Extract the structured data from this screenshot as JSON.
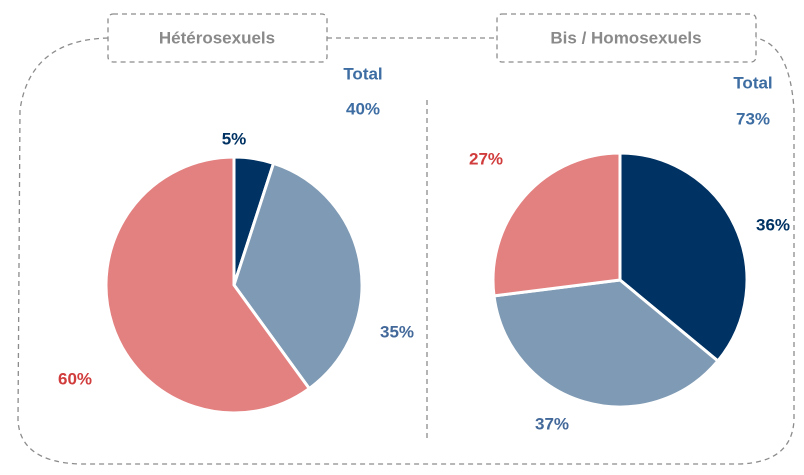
{
  "chart_data": [
    {
      "type": "pie",
      "title": "Hétérosexuels",
      "categories": [
        null,
        null,
        null
      ],
      "values": [
        5,
        35,
        60
      ],
      "value_labels": [
        "5%",
        "35%",
        "60%"
      ],
      "colors": [
        "#003263",
        "#7f9ab4",
        "#e38080"
      ],
      "label_colors": [
        "#003263",
        "#43699a",
        "#d13c3c"
      ],
      "total": {
        "label": "Total",
        "value": 40,
        "value_label": "40%",
        "color": "#3d6da2"
      }
    },
    {
      "type": "pie",
      "title": "Bis / Homosexuels",
      "categories": [
        null,
        null,
        null
      ],
      "values": [
        36,
        37,
        27
      ],
      "value_labels": [
        "36%",
        "37%",
        "27%"
      ],
      "colors": [
        "#003263",
        "#7f9ab4",
        "#e38080"
      ],
      "label_colors": [
        "#003263",
        "#43699a",
        "#d13c3c"
      ],
      "total": {
        "label": "Total",
        "value": 73,
        "value_label": "73%",
        "color": "#3d6da2"
      }
    }
  ]
}
